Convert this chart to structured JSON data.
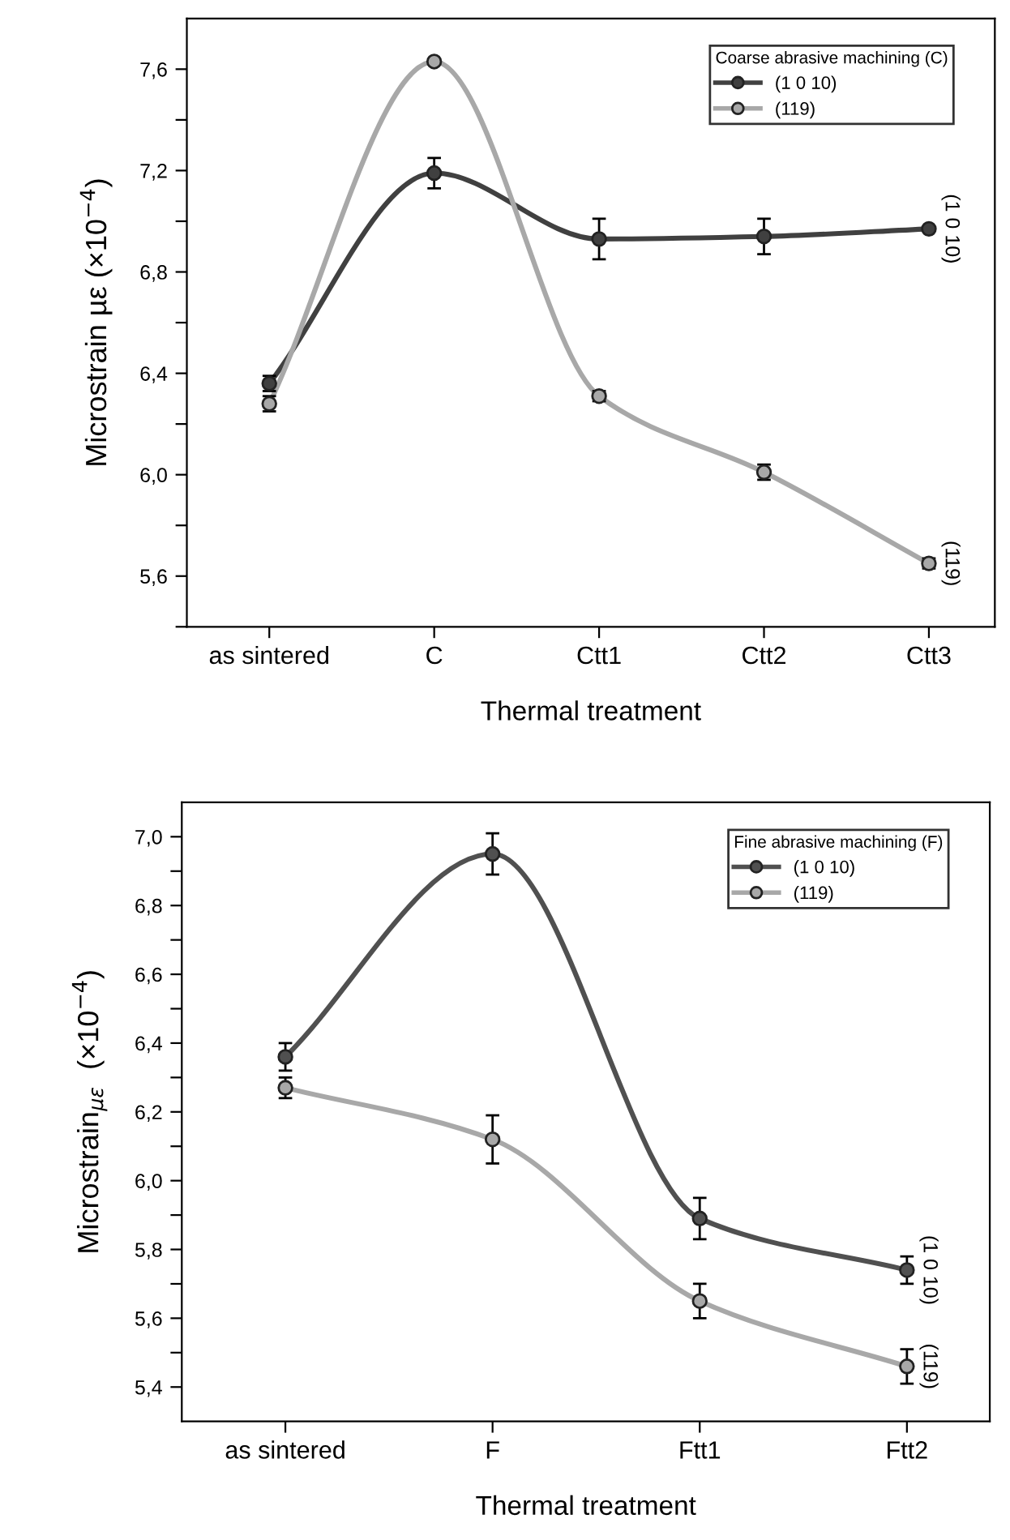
{
  "chart_data": [
    {
      "type": "line",
      "categories": [
        "as sintered",
        "C",
        "Ctt1",
        "Ctt2",
        "Ctt3"
      ],
      "ylabel": "Microstrain µε (×10$^{−4}$)",
      "xlabel": "Thermal treatment",
      "legend_title": "Coarse abrasive machining (C)",
      "legend": "top right",
      "marker": "circle",
      "line_style": "solid",
      "ylim": [
        5.4,
        7.8
      ],
      "yticks": [
        {
          "value": 5.4,
          "label": null
        },
        {
          "value": 5.6,
          "label": "5,6"
        },
        {
          "value": 5.8,
          "label": null
        },
        {
          "value": 6.0,
          "label": "6,0"
        },
        {
          "value": 6.2,
          "label": null
        },
        {
          "value": 6.4,
          "label": "6,4"
        },
        {
          "value": 6.6,
          "label": null
        },
        {
          "value": 6.8,
          "label": "6,8"
        },
        {
          "value": 7.0,
          "label": null
        },
        {
          "value": 7.2,
          "label": "7,2"
        },
        {
          "value": 7.4,
          "label": null
        },
        {
          "value": 7.6,
          "label": "7,6"
        }
      ],
      "series": [
        {
          "name": "(1 0 10)",
          "color": "#404040",
          "values": [
            6.36,
            7.19,
            6.93,
            6.94,
            6.97
          ],
          "errors": [
            0.03,
            0.06,
            0.08,
            0.07,
            null
          ]
        },
        {
          "name": "(119)",
          "color": "#a8a8a8",
          "values": [
            6.28,
            7.63,
            6.31,
            6.01,
            5.65
          ],
          "errors": [
            0.03,
            0.01,
            0.02,
            0.03,
            0.02
          ]
        }
      ],
      "annotations": [
        {
          "text": "(1 0 10)",
          "x": "Ctt3",
          "y": 6.97
        },
        {
          "text": "(119)",
          "x": "Ctt3",
          "y": 5.65
        }
      ]
    },
    {
      "type": "line",
      "categories": [
        "as sintered",
        "F",
        "Ftt1",
        "Ftt2"
      ],
      "ylabel": "Microstrain$_{με}$  (×10$^{−4}$)",
      "xlabel": "Thermal treatment",
      "legend_title": "Fine abrasive machining (F)",
      "legend": "top right",
      "marker": "circle",
      "line_style": "solid",
      "ylim": [
        5.3,
        7.1
      ],
      "yticks": [
        {
          "value": 5.4,
          "label": "5,4"
        },
        {
          "value": 5.5,
          "label": null
        },
        {
          "value": 5.6,
          "label": "5,6"
        },
        {
          "value": 5.7,
          "label": null
        },
        {
          "value": 5.8,
          "label": "5,8"
        },
        {
          "value": 5.9,
          "label": null
        },
        {
          "value": 6.0,
          "label": "6,0"
        },
        {
          "value": 6.1,
          "label": null
        },
        {
          "value": 6.2,
          "label": "6,2"
        },
        {
          "value": 6.3,
          "label": null
        },
        {
          "value": 6.4,
          "label": "6,4"
        },
        {
          "value": 6.5,
          "label": null
        },
        {
          "value": 6.6,
          "label": "6,6"
        },
        {
          "value": 6.7,
          "label": null
        },
        {
          "value": 6.8,
          "label": "6,8"
        },
        {
          "value": 6.9,
          "label": null
        },
        {
          "value": 7.0,
          "label": "7,0"
        }
      ],
      "series": [
        {
          "name": "(1 0 10)",
          "color": "#505050",
          "values": [
            6.36,
            6.95,
            5.89,
            5.74
          ],
          "errors": [
            0.04,
            0.06,
            0.06,
            0.04
          ]
        },
        {
          "name": "(119)",
          "color": "#a8a8a8",
          "values": [
            6.27,
            6.12,
            5.65,
            5.46
          ],
          "errors": [
            0.03,
            0.07,
            0.05,
            0.05
          ]
        }
      ],
      "annotations": [
        {
          "text": "(1 0 10)",
          "x": "Ftt2",
          "y": 5.74
        },
        {
          "text": "(119)",
          "x": "Ftt2",
          "y": 5.46
        }
      ]
    }
  ]
}
